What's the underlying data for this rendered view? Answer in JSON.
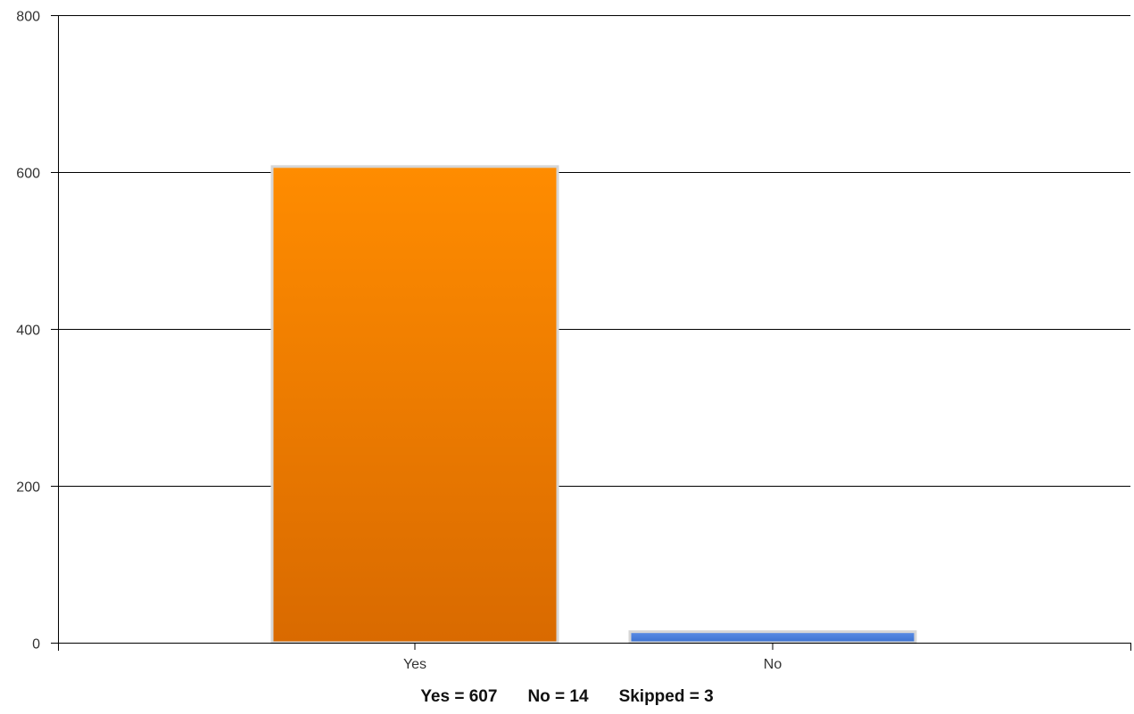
{
  "chart_data": {
    "type": "bar",
    "categories": [
      "Yes",
      "No"
    ],
    "values": [
      607,
      14
    ],
    "ylim": [
      0,
      800
    ],
    "yticks": [
      0,
      200,
      400,
      600,
      800
    ],
    "grid": true,
    "legend": "none",
    "colors": {
      "Yes": {
        "top": "#ff8c00",
        "bottom": "#d96a00"
      },
      "No": {
        "top": "#5b8ee6",
        "bottom": "#3a6fd0"
      },
      "bar_border": "#d6d6d6",
      "grid": "#000000"
    }
  },
  "summary": {
    "yes": "Yes = 607",
    "no": "No = 14",
    "skipped": "Skipped = 3"
  }
}
